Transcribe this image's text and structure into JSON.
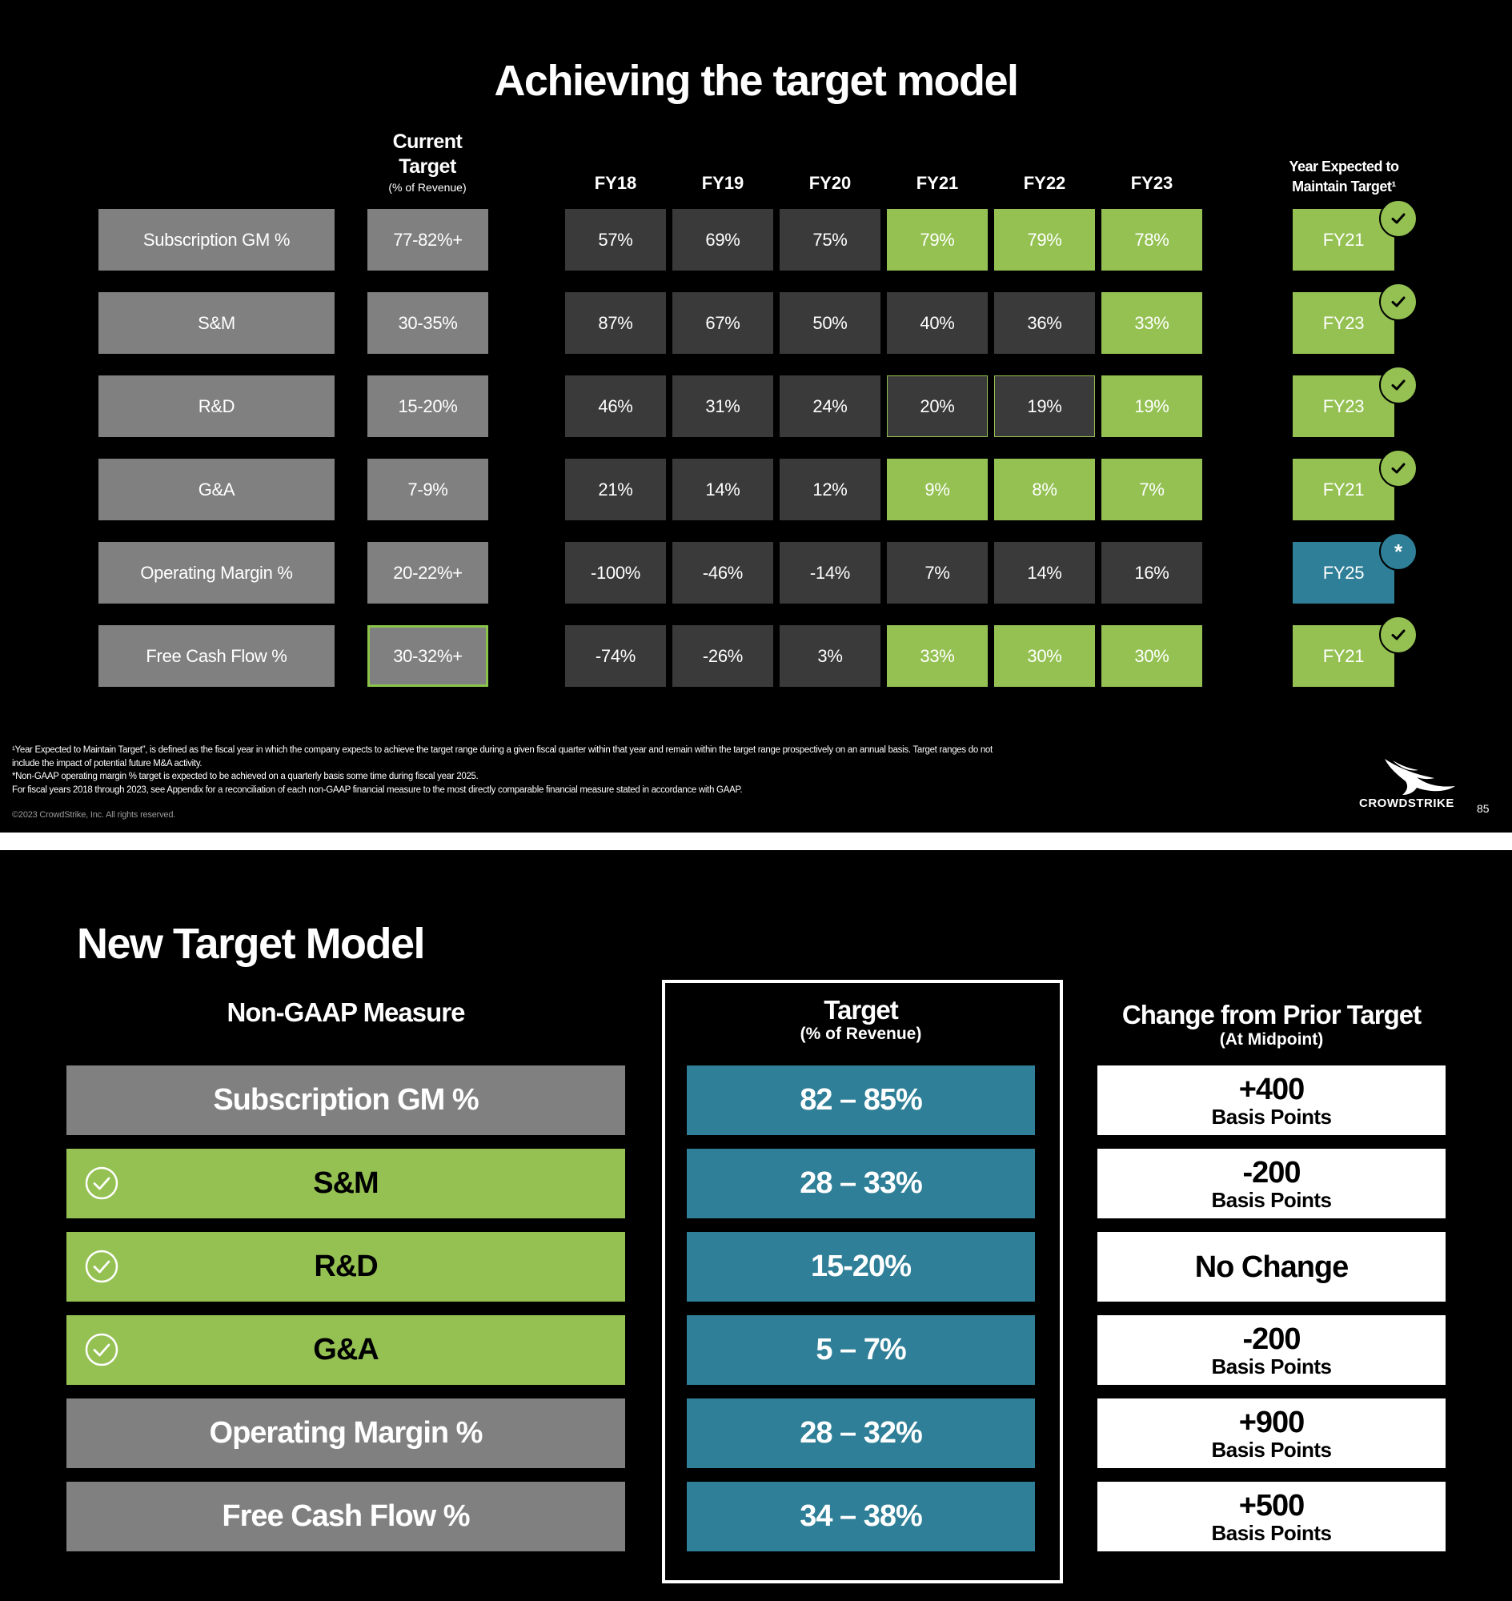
{
  "slide1": {
    "title": "Achieving the target model",
    "current_target_header": {
      "line1": "Current",
      "line2": "Target",
      "sub": "(% of Revenue)"
    },
    "year_headers": [
      "FY18",
      "FY19",
      "FY20",
      "FY21",
      "FY22",
      "FY23"
    ],
    "year_expected_header": {
      "line1": "Year Expected to",
      "line2": "Maintain Target¹"
    },
    "rows": [
      {
        "measure": "Subscription GM %",
        "target": "77-82%+",
        "values": [
          "57%",
          "69%",
          "75%",
          "79%",
          "79%",
          "78%"
        ],
        "states": [
          "dark",
          "dark",
          "dark",
          "green",
          "green",
          "green"
        ],
        "year": "FY21",
        "year_state": "green",
        "badge": "check"
      },
      {
        "measure": "S&M",
        "target": "30-35%",
        "values": [
          "87%",
          "67%",
          "50%",
          "40%",
          "36%",
          "33%"
        ],
        "states": [
          "dark",
          "dark",
          "dark",
          "dark",
          "dark",
          "green"
        ],
        "year": "FY23",
        "year_state": "green",
        "badge": "check"
      },
      {
        "measure": "R&D",
        "target": "15-20%",
        "values": [
          "46%",
          "31%",
          "24%",
          "20%",
          "19%",
          "19%"
        ],
        "states": [
          "dark",
          "dark",
          "dark",
          "outlined",
          "outlined",
          "green"
        ],
        "year": "FY23",
        "year_state": "green",
        "badge": "check"
      },
      {
        "measure": "G&A",
        "target": "7-9%",
        "values": [
          "21%",
          "14%",
          "12%",
          "9%",
          "8%",
          "7%"
        ],
        "states": [
          "dark",
          "dark",
          "dark",
          "green",
          "green",
          "green"
        ],
        "year": "FY21",
        "year_state": "green",
        "badge": "check"
      },
      {
        "measure": "Operating Margin %",
        "target": "20-22%+",
        "values": [
          "-100%",
          "-46%",
          "-14%",
          "7%",
          "14%",
          "16%"
        ],
        "states": [
          "dark",
          "dark",
          "dark",
          "dark",
          "dark",
          "dark"
        ],
        "year": "FY25",
        "year_state": "blue",
        "badge": "star"
      },
      {
        "measure": "Free Cash Flow %",
        "target": "30-32%+",
        "target_highlight": true,
        "values": [
          "-74%",
          "-26%",
          "3%",
          "33%",
          "30%",
          "30%"
        ],
        "states": [
          "dark",
          "dark",
          "dark",
          "green",
          "green",
          "green"
        ],
        "year": "FY21",
        "year_state": "green",
        "badge": "check"
      }
    ],
    "star_symbol": "*",
    "footnotes": [
      "¹Year Expected to Maintain Target”, is defined as the fiscal year in which the company expects to achieve the target range during a given fiscal quarter within that year and remain within the target range prospectively on an annual basis. Target ranges do not",
      "include the impact of potential future M&A activity.",
      "*Non-GAAP operating margin % target is expected to be achieved on a quarterly basis some time during fiscal year 2025.",
      "For fiscal years 2018 through 2023, see Appendix for a reconciliation of each non-GAAP financial measure to the most directly comparable financial measure stated in accordance with GAAP."
    ],
    "copyright": "©2023 CrowdStrike, Inc. All rights reserved.",
    "logo_text": "CROWDSTRIKE",
    "page_number": "85",
    "colors": {
      "green": "#94c152",
      "dark": "#3a3a3a",
      "gray": "#808080",
      "blue": "#2e7f97"
    }
  },
  "slide2": {
    "title": "New Target Model",
    "measure_header": "Non-GAAP Measure",
    "target_header": {
      "line1": "Target",
      "line2": "(% of Revenue)"
    },
    "change_header": {
      "line1": "Change from Prior Target",
      "line2": "(At Midpoint)"
    },
    "rows": [
      {
        "measure": "Subscription GM %",
        "style": "gray",
        "check": false,
        "target": "82 – 85%",
        "change": "+400",
        "unit": "Basis Points"
      },
      {
        "measure": "S&M",
        "style": "green",
        "check": true,
        "target": "28 – 33%",
        "change": "-200",
        "unit": "Basis Points"
      },
      {
        "measure": "R&D",
        "style": "green",
        "check": true,
        "target": "15-20%",
        "change": "No Change",
        "unit": ""
      },
      {
        "measure": "G&A",
        "style": "green",
        "check": true,
        "target": "5 – 7%",
        "change": "-200",
        "unit": "Basis Points"
      },
      {
        "measure": "Operating Margin %",
        "style": "gray",
        "check": false,
        "target": "28 – 32%",
        "change": "+900",
        "unit": "Basis Points"
      },
      {
        "measure": "Free Cash Flow %",
        "style": "gray",
        "check": false,
        "target": "34 – 38%",
        "change": "+500",
        "unit": "Basis Points"
      }
    ]
  }
}
